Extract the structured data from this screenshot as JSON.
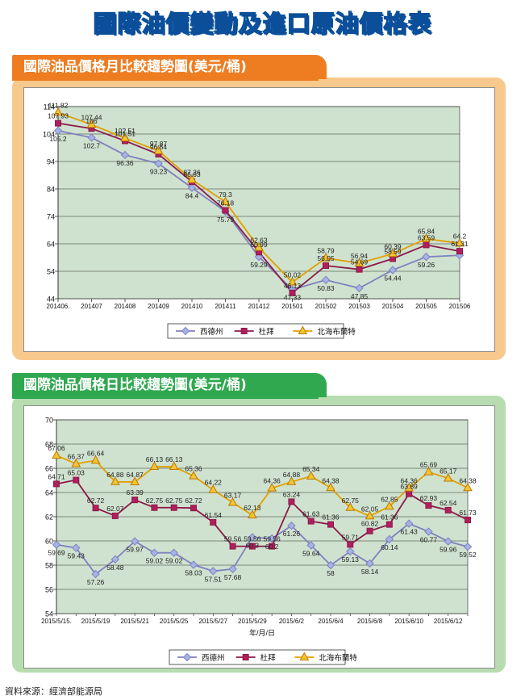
{
  "page_title": "國際油價變動及進口原油價格表",
  "colors": {
    "title_fill": "#25a6e6",
    "title_outline": "#0b4f9a",
    "orange_tab": "#ee7d22",
    "orange_panel": "#f8c98c",
    "green_tab": "#2fa84f",
    "green_panel": "#b6dcb0",
    "plot_bg": "#cfe2cf",
    "dubai": "#8b1a4a",
    "dubai_fill": "#b01f5c",
    "wti": "#8080c0",
    "wti_fill": "#a4b4e6",
    "brent": "#e0a000",
    "brent_fill": "#f2c534"
  },
  "monthly_tab_title": "國際油品價格月比較趨勢圖(美元/桶)",
  "daily_tab_title": "國際油品價格日比較趨勢圖(美元/桶)",
  "source_note": "資料來源：經濟部能源局",
  "chart_data": [
    {
      "type": "line",
      "title": "國際油品價格月比較趨勢圖(美元/桶)",
      "categories": [
        "201406.",
        "201407",
        "201408",
        "201409",
        "201410",
        "201411",
        "201412",
        "201501",
        "201502",
        "201503",
        "201504",
        "201505",
        "201506"
      ],
      "ylim": [
        44,
        114
      ],
      "yticks": [
        "44",
        "54",
        "64",
        "74",
        "84",
        "94",
        "104",
        "114"
      ],
      "grid": true,
      "legend_position": "bottom",
      "series": [
        {
          "name": "西德州",
          "marker": "diamond",
          "values": [
            105.2,
            102.7,
            96.36,
            93.23,
            84.4,
            75.79,
            59.29,
            47.33,
            50.83,
            47.85,
            54.44,
            59.26,
            59.82
          ],
          "labels": [
            "105.2",
            "102.7",
            "96.36",
            "93.23",
            "84.4",
            "75.79",
            "59.29",
            "47.33",
            "50.83",
            "47.85",
            "54.44",
            "59.26",
            ""
          ]
        },
        {
          "name": "杜拜",
          "marker": "square",
          "values": [
            107.93,
            106.0,
            101.51,
            96.64,
            86.63,
            76.18,
            60.99,
            46.13,
            56.05,
            54.69,
            58.59,
            63.59,
            61.31
          ],
          "labels": [
            "107.93",
            "106",
            "101.51",
            "96.64",
            "86.63",
            "76.18",
            "60.99",
            "46.13",
            "56.05",
            "54.69",
            "58.59",
            "63.59",
            "61.31"
          ]
        },
        {
          "name": "北海布蘭特",
          "marker": "triangle",
          "values": [
            111.82,
            107.44,
            102.51,
            97.87,
            87.36,
            79.3,
            62.63,
            50.02,
            58.79,
            56.94,
            60.39,
            65.84,
            64.2
          ],
          "labels": [
            "111.82",
            "107.44",
            "102.51",
            "97.87",
            "87.36",
            "79.3",
            "62.63",
            "50.02",
            "58.79",
            "56.94",
            "60.39",
            "65.84",
            "64.2"
          ]
        }
      ]
    },
    {
      "type": "line",
      "title": "國際油品價格日比較趨勢圖(美元/桶)",
      "xlabel": "年/月/日",
      "x": [
        "2015/5/15.",
        "2015/5/18",
        "2015/5/19",
        "2015/5/20",
        "2015/5/21",
        "2015/5/22",
        "2015/5/25",
        "2015/5/26",
        "2015/5/27",
        "2015/5/28",
        "2015/5/29",
        "2015/6/1",
        "2015/6/2",
        "2015/6/3",
        "2015/6/4",
        "2015/6/5",
        "2015/6/8",
        "2015/6/9",
        "2015/6/10",
        "2015/6/11",
        "2015/6/12",
        "2015/6/15"
      ],
      "xtick_labels": [
        "2015/5/15.",
        "2015/5/19",
        "2015/5/21",
        "2015/5/25",
        "2015/5/27",
        "2015/5/29",
        "2015/6/2",
        "2015/6/4",
        "2015/6/8",
        "2015/6/10",
        "2015/6/12"
      ],
      "ylim": [
        54,
        70
      ],
      "yticks": [
        "54",
        "56",
        "58",
        "60",
        "62",
        "64",
        "66",
        "68",
        "70"
      ],
      "grid": true,
      "legend_position": "bottom",
      "series": [
        {
          "name": "西德州",
          "marker": "diamond",
          "values": [
            59.69,
            59.43,
            57.26,
            58.48,
            59.97,
            59.02,
            59.02,
            58.03,
            57.51,
            57.68,
            60.3,
            60.2,
            61.26,
            59.64,
            58.0,
            59.13,
            58.14,
            60.14,
            61.43,
            60.77,
            59.96,
            59.52
          ],
          "labels": [
            "59.69",
            "59.43",
            "57.26",
            "58.48",
            "59.97",
            "59.02",
            "59.02",
            "58.03",
            "57.51",
            "57.68",
            "60.3",
            "60.2",
            "61.26",
            "59.64",
            "58",
            "59.13",
            "58.14",
            "60.14",
            "61.43",
            "60.77",
            "59.96",
            "59.52"
          ]
        },
        {
          "name": "杜拜",
          "marker": "square",
          "values": [
            64.71,
            65.03,
            62.72,
            62.07,
            63.39,
            62.75,
            62.75,
            62.72,
            61.54,
            59.56,
            59.56,
            59.56,
            63.24,
            61.63,
            61.36,
            59.71,
            60.82,
            61.36,
            63.89,
            62.93,
            62.54,
            61.73
          ],
          "labels": [
            "64.71",
            "65.03",
            "62.72",
            "62.07",
            "63.39",
            "62.75",
            "62.75",
            "62.72",
            "61.54",
            "59.56",
            "59.56",
            "59.56",
            "63.24",
            "61.63",
            "61.36",
            "59.71",
            "60.82",
            "61.36",
            "63.89",
            "62.93",
            "62.54",
            "61.73"
          ]
        },
        {
          "name": "北海布蘭特",
          "marker": "triangle",
          "values": [
            67.06,
            66.37,
            66.64,
            64.88,
            64.87,
            66.13,
            66.13,
            65.36,
            64.22,
            63.17,
            62.13,
            64.36,
            64.88,
            65.34,
            64.38,
            62.75,
            62.05,
            62.85,
            64.36,
            65.69,
            65.17,
            64.38
          ],
          "labels": [
            "67.06",
            "66.37",
            "66.64",
            "64.88",
            "64.87",
            "66.13",
            "66.13",
            "65.36",
            "64.22",
            "63.17",
            "62.13",
            "64.36",
            "64.88",
            "65.34",
            "64.38",
            "62.75",
            "62.05",
            "62.85",
            "64.36",
            "65.69",
            "65.17",
            "64.38"
          ]
        }
      ]
    }
  ]
}
